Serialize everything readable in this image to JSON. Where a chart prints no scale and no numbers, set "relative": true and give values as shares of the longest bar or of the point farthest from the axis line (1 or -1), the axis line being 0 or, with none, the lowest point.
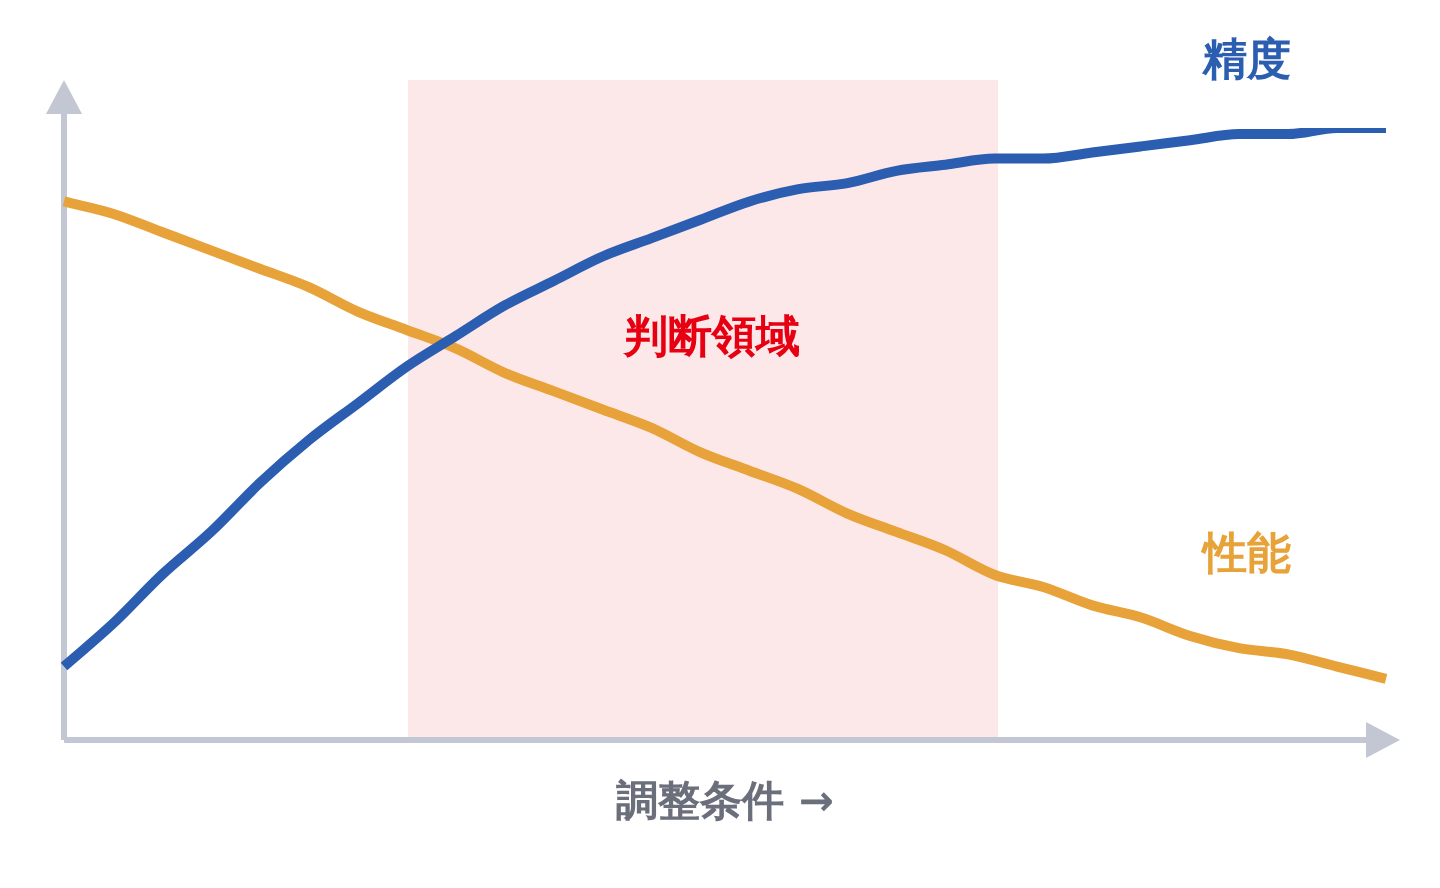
{
  "chart_data": {
    "type": "line",
    "relative": true,
    "xlabel": "調整条件 →",
    "categories": [
      null,
      null,
      null,
      null,
      null,
      null,
      null,
      null,
      null,
      null,
      null,
      null,
      null,
      null,
      null,
      null,
      null,
      null,
      null,
      null,
      null,
      null,
      null,
      null,
      null,
      null,
      null,
      null
    ],
    "series": [
      {
        "name": "精度",
        "color": "#2b5db0",
        "values": [
          0.12,
          0.19,
          0.27,
          0.34,
          0.42,
          0.49,
          0.55,
          0.61,
          0.66,
          0.71,
          0.75,
          0.79,
          0.82,
          0.85,
          0.88,
          0.9,
          0.91,
          0.93,
          0.94,
          0.95,
          0.95,
          0.96,
          0.97,
          0.98,
          0.99,
          0.99,
          1.0,
          1.0
        ]
      },
      {
        "name": "性能",
        "color": "#e8a23a",
        "values": [
          0.88,
          0.86,
          0.83,
          0.8,
          0.77,
          0.74,
          0.7,
          0.67,
          0.64,
          0.6,
          0.57,
          0.54,
          0.51,
          0.47,
          0.44,
          0.41,
          0.37,
          0.34,
          0.31,
          0.27,
          0.25,
          0.22,
          0.2,
          0.17,
          0.15,
          0.14,
          0.12,
          0.1
        ]
      }
    ],
    "annotations": [
      "判断領域"
    ],
    "marker": "none",
    "line_style": "solid"
  }
}
